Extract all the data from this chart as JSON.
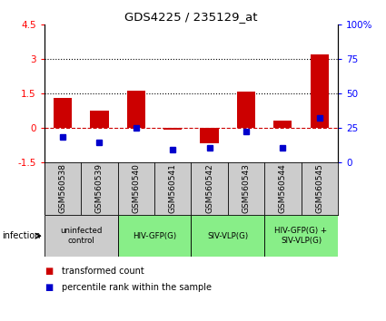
{
  "title": "GDS4225 / 235129_at",
  "samples": [
    "GSM560538",
    "GSM560539",
    "GSM560540",
    "GSM560541",
    "GSM560542",
    "GSM560543",
    "GSM560544",
    "GSM560545"
  ],
  "red_values": [
    1.3,
    0.75,
    1.6,
    -0.1,
    -0.7,
    1.55,
    0.3,
    3.2
  ],
  "blue_values_pct": [
    18,
    14,
    25,
    9,
    10,
    22,
    10,
    32
  ],
  "ylim": [
    -1.5,
    4.5
  ],
  "yticks_red": [
    -1.5,
    0.0,
    1.5,
    3.0,
    4.5
  ],
  "yticks_blue": [
    0,
    25,
    50,
    75,
    100
  ],
  "hlines": [
    0.0,
    1.5,
    3.0
  ],
  "hlines_styles": [
    "dashed",
    "dotted",
    "dotted"
  ],
  "hlines_colors": [
    "#cc0000",
    "black",
    "black"
  ],
  "infection_groups": [
    {
      "label": "uninfected\ncontrol",
      "start": 0,
      "end": 2,
      "color": "#cccccc"
    },
    {
      "label": "HIV-GFP(G)",
      "start": 2,
      "end": 4,
      "color": "#88ee88"
    },
    {
      "label": "SIV-VLP(G)",
      "start": 4,
      "end": 6,
      "color": "#88ee88"
    },
    {
      "label": "HIV-GFP(G) +\nSIV-VLP(G)",
      "start": 6,
      "end": 8,
      "color": "#88ee88"
    }
  ],
  "red_color": "#cc0000",
  "blue_color": "#0000cc",
  "bar_width": 0.5,
  "blue_marker_size": 5
}
